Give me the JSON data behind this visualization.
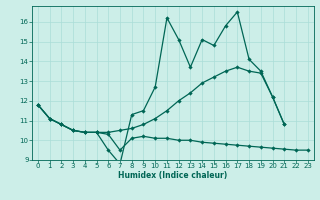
{
  "xlabel": "Humidex (Indice chaleur)",
  "bg_color": "#cceee8",
  "grid_color": "#aaddd8",
  "line_color": "#006655",
  "xlim": [
    -0.5,
    23.5
  ],
  "ylim": [
    9,
    16.8
  ],
  "yticks": [
    9,
    10,
    11,
    12,
    13,
    14,
    15,
    16
  ],
  "xticks": [
    0,
    1,
    2,
    3,
    4,
    5,
    6,
    7,
    8,
    9,
    10,
    11,
    12,
    13,
    14,
    15,
    16,
    17,
    18,
    19,
    20,
    21,
    22,
    23
  ],
  "line_bottom_x": [
    0,
    1,
    2,
    3,
    4,
    5,
    6,
    7,
    8,
    9,
    10,
    11,
    12,
    13,
    14,
    15,
    16,
    17,
    18,
    19,
    20,
    21,
    22,
    23
  ],
  "line_bottom_y": [
    11.8,
    11.1,
    10.8,
    10.5,
    10.4,
    10.4,
    10.3,
    9.5,
    10.1,
    10.2,
    10.1,
    10.1,
    10.0,
    10.0,
    9.9,
    9.85,
    9.8,
    9.75,
    9.7,
    9.65,
    9.6,
    9.55,
    9.5,
    9.5
  ],
  "line_trend_x": [
    0,
    1,
    2,
    3,
    4,
    5,
    6,
    7,
    8,
    9,
    10,
    11,
    12,
    13,
    14,
    15,
    16,
    17,
    18,
    19,
    20,
    21,
    22,
    23
  ],
  "line_trend_y": [
    11.8,
    11.1,
    10.8,
    10.5,
    10.4,
    10.4,
    10.4,
    10.5,
    10.6,
    10.8,
    11.1,
    11.5,
    12.0,
    12.4,
    12.9,
    13.2,
    13.5,
    13.7,
    13.5,
    13.4,
    12.2,
    10.8,
    null,
    null
  ],
  "line_top_x": [
    0,
    1,
    2,
    3,
    4,
    5,
    6,
    7,
    8,
    9,
    10,
    11,
    12,
    13,
    14,
    15,
    16,
    17,
    18,
    19,
    20,
    21,
    22,
    23
  ],
  "line_top_y": [
    11.8,
    11.1,
    10.8,
    10.5,
    10.4,
    10.4,
    9.5,
    8.8,
    11.3,
    11.5,
    12.7,
    16.2,
    15.1,
    13.7,
    15.1,
    14.8,
    15.8,
    16.5,
    14.1,
    13.5,
    12.2,
    10.8,
    null,
    null
  ]
}
